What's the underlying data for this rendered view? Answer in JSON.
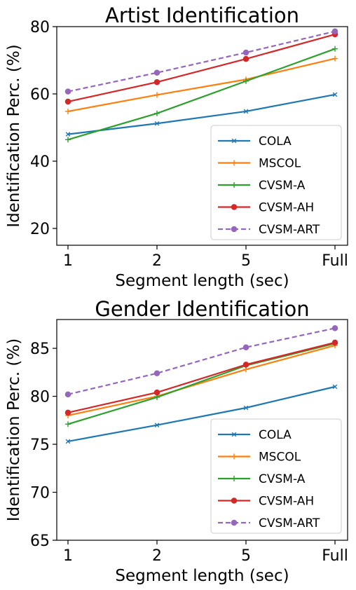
{
  "chart_data": [
    {
      "type": "line",
      "title": "Artist Identification",
      "xlabel": "Segment length (sec)",
      "ylabel": "Identification Perc. (%)",
      "categories": [
        "1",
        "2",
        "5",
        "Full"
      ],
      "ylim": [
        15,
        80
      ],
      "yticks": [
        20,
        40,
        60,
        80
      ],
      "grid": false,
      "legend_position": "lower-right",
      "series": [
        {
          "name": "COLA",
          "values": [
            48.0,
            51.2,
            54.8,
            59.8
          ],
          "color": "#1f77b4",
          "marker": "x",
          "dashed": false
        },
        {
          "name": "MSCOL",
          "values": [
            54.8,
            59.7,
            64.3,
            70.5
          ],
          "color": "#ff7f0e",
          "marker": "plus",
          "dashed": false
        },
        {
          "name": "CVSM-A",
          "values": [
            46.4,
            54.2,
            63.8,
            73.4
          ],
          "color": "#2ca02c",
          "marker": "plus",
          "dashed": false
        },
        {
          "name": "CVSM-AH",
          "values": [
            57.7,
            63.5,
            70.4,
            77.7
          ],
          "color": "#d62728",
          "marker": "circle",
          "dashed": false
        },
        {
          "name": "CVSM-ART",
          "values": [
            60.7,
            66.3,
            72.3,
            78.6
          ],
          "color": "#9467bd",
          "marker": "circle",
          "dashed": true
        }
      ]
    },
    {
      "type": "line",
      "title": "Gender Identification",
      "xlabel": "Segment length (sec)",
      "ylabel": "Identification Perc. (%)",
      "categories": [
        "1",
        "2",
        "5",
        "Full"
      ],
      "ylim": [
        65,
        88
      ],
      "yticks": [
        65,
        70,
        75,
        80,
        85
      ],
      "grid": false,
      "legend_position": "lower-right",
      "series": [
        {
          "name": "COLA",
          "values": [
            75.3,
            77.0,
            78.8,
            81.0
          ],
          "color": "#1f77b4",
          "marker": "x",
          "dashed": false
        },
        {
          "name": "MSCOL",
          "values": [
            78.0,
            80.0,
            82.8,
            85.3
          ],
          "color": "#ff7f0e",
          "marker": "plus",
          "dashed": false
        },
        {
          "name": "CVSM-A",
          "values": [
            77.1,
            79.9,
            83.2,
            85.5
          ],
          "color": "#2ca02c",
          "marker": "plus",
          "dashed": false
        },
        {
          "name": "CVSM-AH",
          "values": [
            78.3,
            80.4,
            83.3,
            85.6
          ],
          "color": "#d62728",
          "marker": "circle",
          "dashed": false
        },
        {
          "name": "CVSM-ART",
          "values": [
            80.2,
            82.4,
            85.1,
            87.1
          ],
          "color": "#9467bd",
          "marker": "circle",
          "dashed": true
        }
      ]
    }
  ]
}
